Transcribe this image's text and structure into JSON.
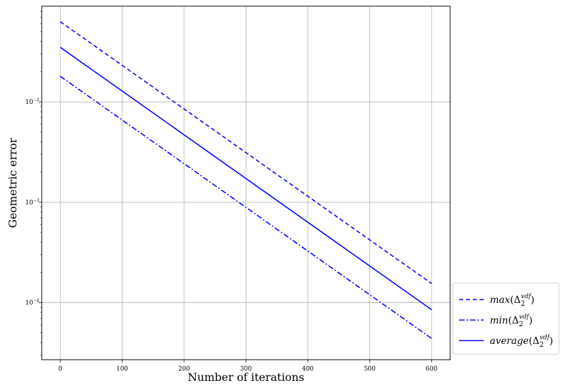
{
  "chart_data": {
    "type": "line",
    "xlabel": "Number of iterations",
    "ylabel": "Geometric error",
    "yscale": "log",
    "xlim": [
      -30,
      630
    ],
    "ylim": [
      2.7e-05,
      0.09
    ],
    "grid": true,
    "legend_position": "outside-right-bottom",
    "x_ticks": [
      "0",
      "100",
      "200",
      "300",
      "400",
      "500",
      "600"
    ],
    "x_tick_values": [
      0,
      100,
      200,
      300,
      400,
      500,
      600
    ],
    "y_ticks": [
      {
        "base": "10",
        "exp": "−2",
        "value": 0.01
      },
      {
        "base": "10",
        "exp": "−3",
        "value": 0.001
      },
      {
        "base": "10",
        "exp": "−4",
        "value": 0.0001
      }
    ],
    "series": [
      {
        "legend": {
          "fn": "max",
          "sym": "Δ",
          "sub": "2",
          "sup": "vdf"
        },
        "style": "dashed",
        "color": "#0000ff",
        "x": [
          0,
          600
        ],
        "y": [
          0.063,
          0.000155
        ]
      },
      {
        "legend": {
          "fn": "min",
          "sym": "Δ",
          "sub": "2",
          "sup": "vdf"
        },
        "style": "dashdot",
        "color": "#0000ff",
        "x": [
          0,
          600
        ],
        "y": [
          0.018,
          4.4e-05
        ]
      },
      {
        "legend": {
          "fn": "average",
          "sym": "Δ",
          "sub": "2",
          "sup": "vdf"
        },
        "style": "solid",
        "color": "#0000ff",
        "x": [
          0,
          600
        ],
        "y": [
          0.035,
          8.5e-05
        ]
      }
    ]
  }
}
